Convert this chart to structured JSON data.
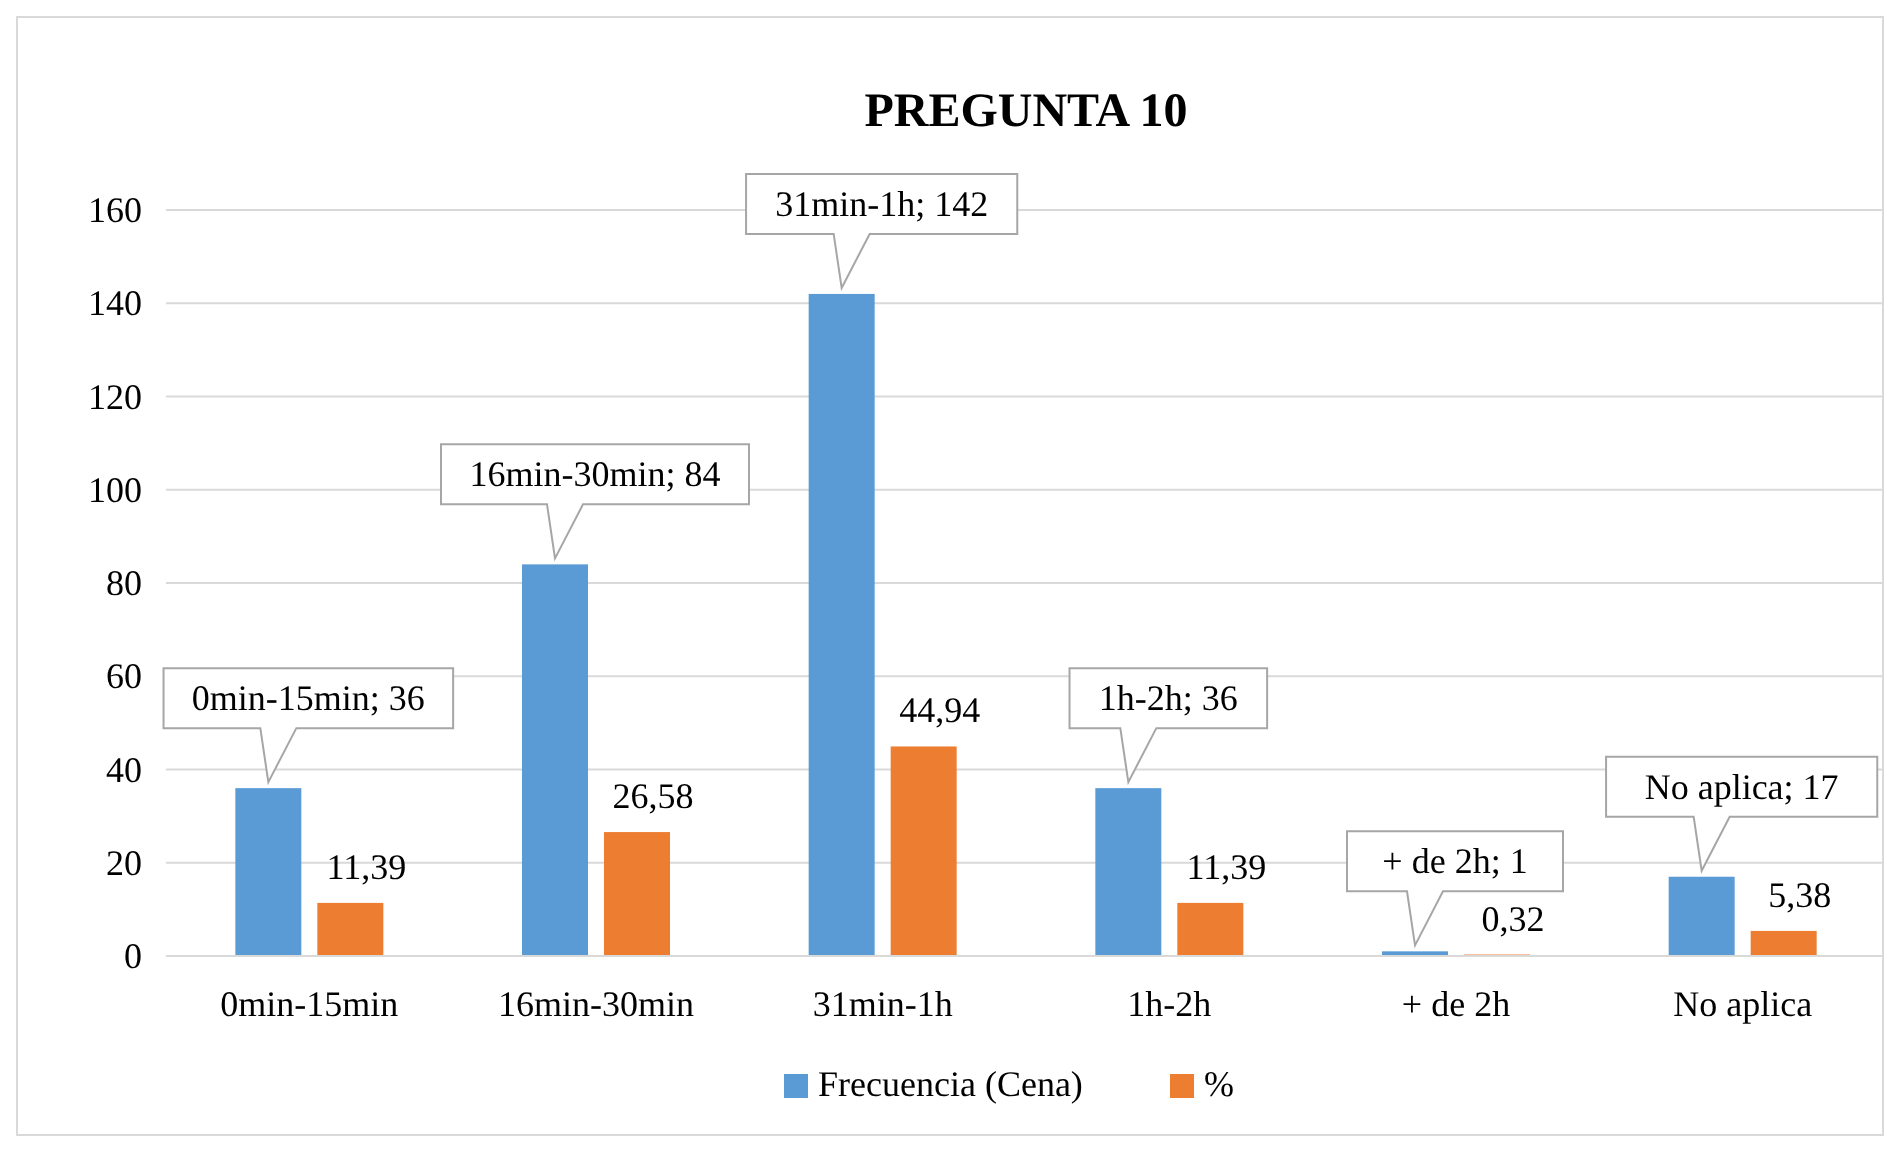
{
  "chart_data": {
    "type": "bar",
    "title": "PREGUNTA 10",
    "categories": [
      "0min-15min",
      "16min-30min",
      "31min-1h",
      "1h-2h",
      "+ de 2h",
      "No aplica"
    ],
    "series": [
      {
        "name": "Frecuencia (Cena)",
        "color": "#5b9bd5",
        "values": [
          36,
          84,
          142,
          36,
          1,
          17
        ],
        "value_labels": [
          "0min-15min; 36",
          "16min-30min; 84",
          "31min-1h; 142",
          "1h-2h; 36",
          "+ de 2h; 1",
          "No aplica; 17"
        ]
      },
      {
        "name": "%",
        "color": "#ed7d31",
        "values": [
          11.39,
          26.58,
          44.94,
          11.39,
          0.32,
          5.38
        ],
        "value_labels": [
          "11,39",
          "26,58",
          "44,94",
          "11,39",
          "0,32",
          "5,38"
        ]
      }
    ],
    "ylim": [
      0,
      160
    ],
    "yticks": [
      0,
      20,
      40,
      60,
      80,
      100,
      120,
      140,
      160
    ],
    "grid": "y",
    "legend": "bottom"
  }
}
